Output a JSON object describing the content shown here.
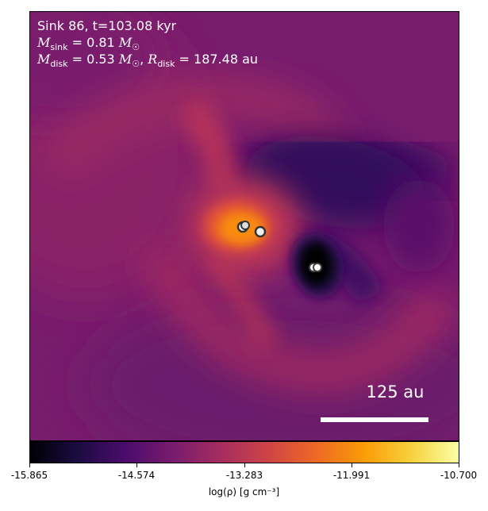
{
  "panel": {
    "title": "Sink 86, t=103.08 kyr",
    "m_sink_value": "0.81",
    "m_disk_value": "0.53",
    "r_disk_value": "187.48",
    "distance_unit": "au",
    "scale_bar_label": "125 au"
  },
  "colorbar": {
    "ticks": [
      "-15.865",
      "-14.574",
      "-13.283",
      "-11.991",
      "-10.700"
    ],
    "label": "log(ρ) [g cm⁻³]",
    "colormap": "inferno",
    "stops": [
      "#000004",
      "#1b0c41",
      "#4a0c6b",
      "#781c6d",
      "#a52c60",
      "#cf4446",
      "#ed6925",
      "#fb9b06",
      "#f7d13d",
      "#fcffa4"
    ]
  }
}
